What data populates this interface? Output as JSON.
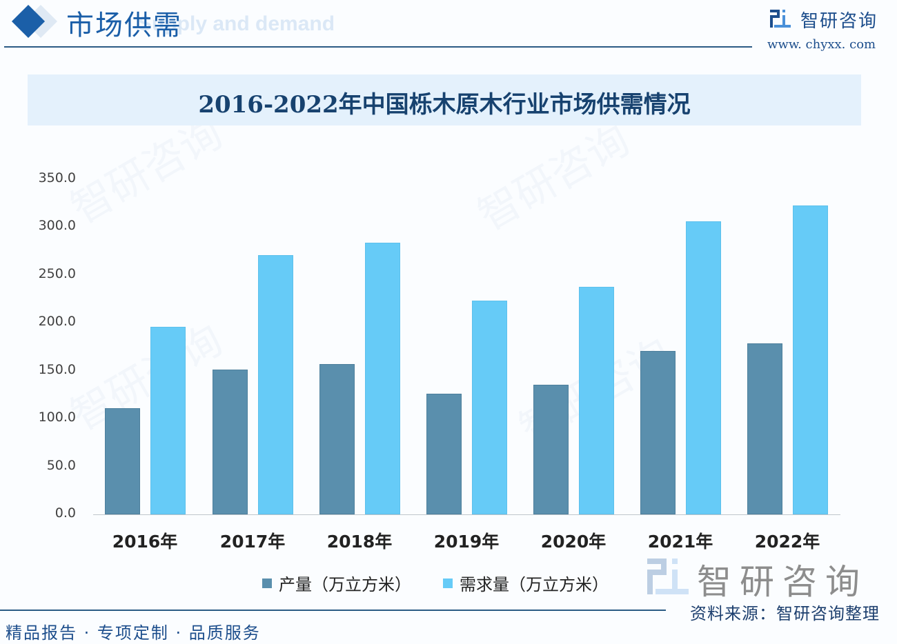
{
  "header": {
    "section_title": "市场供需",
    "section_subtitle_en": "Supply and demand",
    "brand_name": "智研咨询",
    "brand_url": "www. chyxx. com"
  },
  "chart_data": {
    "type": "bar",
    "title": "2016-2022年中国栎木原木行业市场供需情况",
    "xlabel": "",
    "ylabel": "",
    "ylim": [
      0,
      350
    ],
    "yticks": [
      "0.0",
      "50.0",
      "100.0",
      "150.0",
      "200.0",
      "250.0",
      "300.0",
      "350.0"
    ],
    "grid": false,
    "legend_position": "bottom",
    "categories": [
      "2016年",
      "2017年",
      "2018年",
      "2019年",
      "2020年",
      "2021年",
      "2022年"
    ],
    "series": [
      {
        "name": "产量（万立方米）",
        "color": "#5a8fad",
        "values": [
          110.9,
          151.0,
          157.0,
          126.0,
          135.3,
          171.0,
          178.3
        ]
      },
      {
        "name": "需求量（万立方米）",
        "color": "#66cbf7",
        "values": [
          195.8,
          270.7,
          283.7,
          223.2,
          237.6,
          306.4,
          322.3
        ]
      }
    ]
  },
  "footer": {
    "source": "资料来源：智研咨询整理",
    "watermark_brand": "智研咨询",
    "slogan": "精品报告 · 专项定制 · 品质服务"
  }
}
